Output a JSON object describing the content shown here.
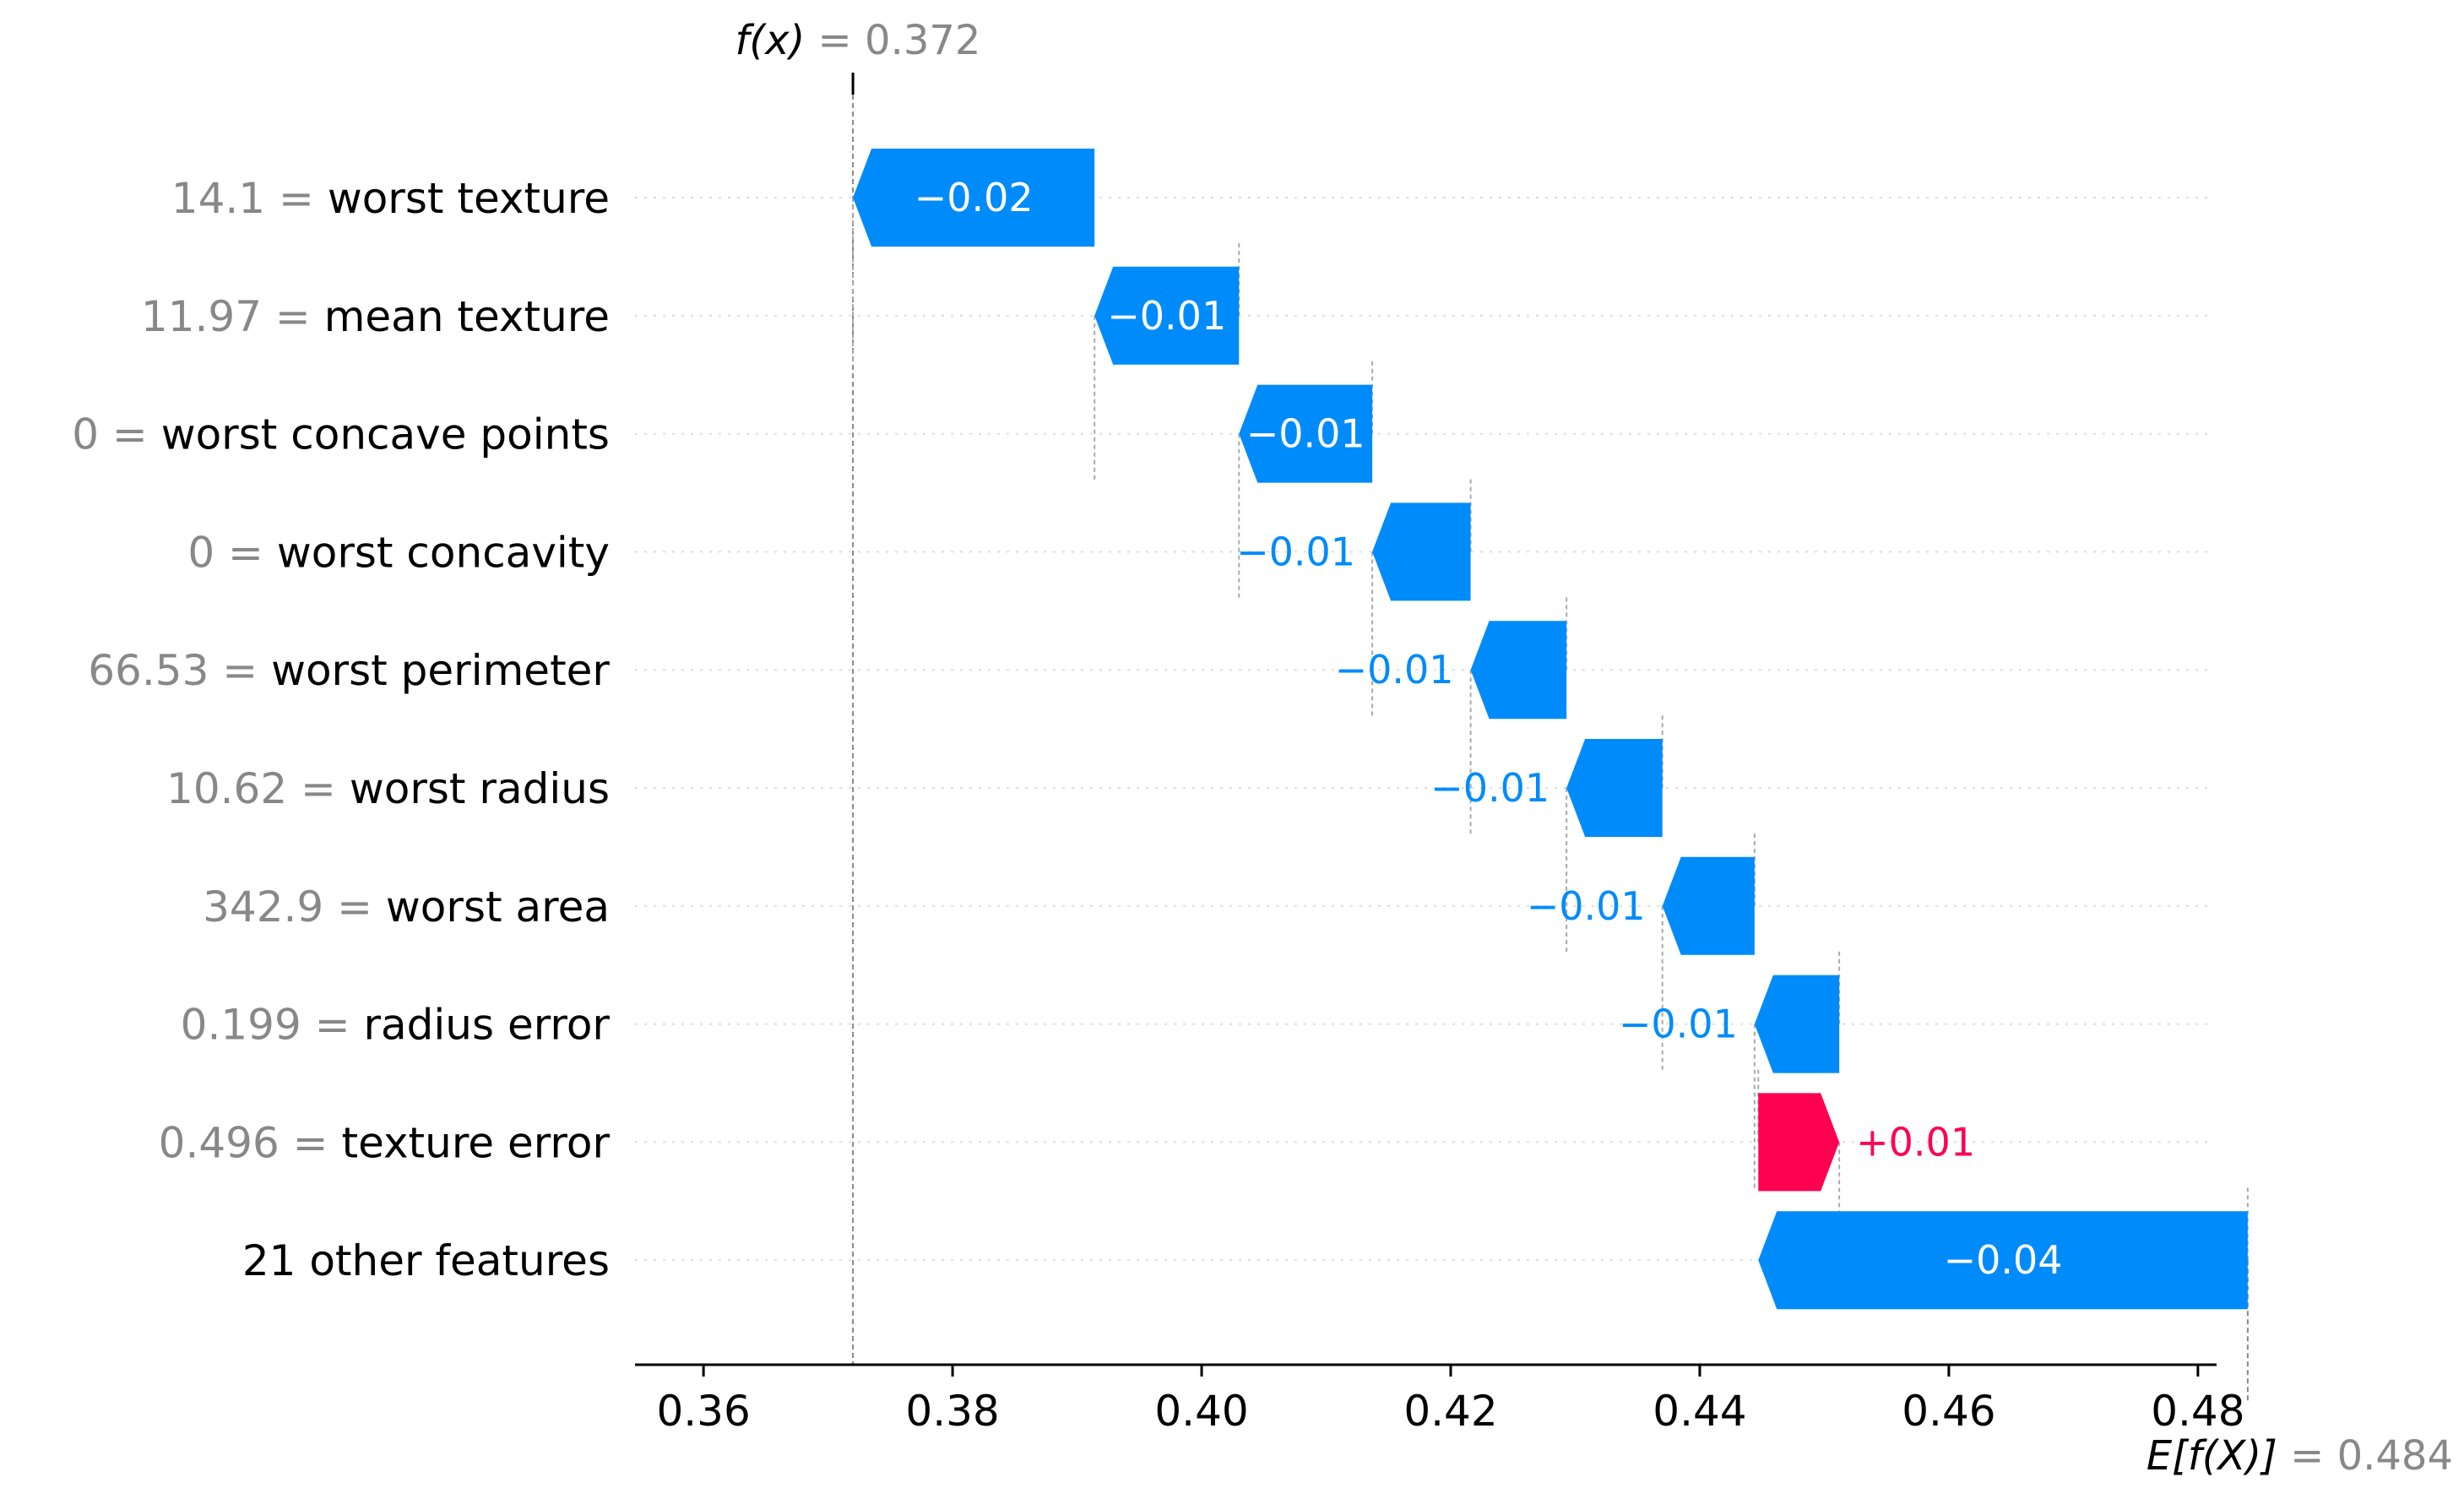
{
  "chart_data": {
    "type": "waterfall",
    "base_value": 0.484,
    "output_value": 0.372,
    "top_label": {
      "name": "f(x)",
      "value_text": " = 0.372"
    },
    "bottom_label": {
      "name": "E[f(X)]",
      "value_text": " = 0.484"
    },
    "xlim": [
      0.3545,
      0.4815
    ],
    "xticks": [
      0.36,
      0.38,
      0.4,
      0.42,
      0.44,
      0.46,
      0.48
    ],
    "xtick_labels": [
      "0.36",
      "0.38",
      "0.40",
      "0.42",
      "0.44",
      "0.46",
      "0.48"
    ],
    "grid": "dotted horizontal per row",
    "features": [
      {
        "value": "14.1",
        "name": "worst texture",
        "start": 0.3914,
        "end": 0.372,
        "label": "−0.02"
      },
      {
        "value": "11.97",
        "name": "mean texture",
        "start": 0.403,
        "end": 0.3914,
        "label": "−0.01"
      },
      {
        "value": "0",
        "name": "worst concave points",
        "start": 0.4137,
        "end": 0.403,
        "label": "−0.01"
      },
      {
        "value": "0",
        "name": "worst concavity",
        "start": 0.4216,
        "end": 0.4137,
        "label": "−0.01"
      },
      {
        "value": "66.53",
        "name": "worst perimeter",
        "start": 0.4293,
        "end": 0.4216,
        "label": "−0.01"
      },
      {
        "value": "10.62",
        "name": "worst radius",
        "start": 0.437,
        "end": 0.4293,
        "label": "−0.01"
      },
      {
        "value": "342.9",
        "name": "worst area",
        "start": 0.4444,
        "end": 0.437,
        "label": "−0.01"
      },
      {
        "value": "0.199",
        "name": "radius error",
        "start": 0.4512,
        "end": 0.4444,
        "label": "−0.01"
      },
      {
        "value": "0.496",
        "name": "texture error",
        "start": 0.4447,
        "end": 0.4512,
        "label": "+0.01"
      },
      {
        "value": "",
        "name": "21 other features",
        "start": 0.484,
        "end": 0.4447,
        "label": "−0.04"
      }
    ],
    "colors": {
      "negative": "#008bfb",
      "positive": "#ff0051",
      "value_text": "#888888"
    }
  }
}
